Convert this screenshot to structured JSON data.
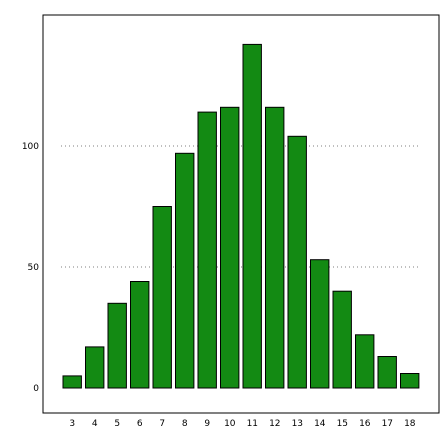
{
  "chart_data": {
    "type": "bar",
    "categories": [
      "3",
      "4",
      "5",
      "6",
      "7",
      "8",
      "9",
      "10",
      "11",
      "12",
      "13",
      "14",
      "15",
      "16",
      "17",
      "18"
    ],
    "values": [
      5,
      17,
      35,
      44,
      75,
      97,
      114,
      116,
      142,
      116,
      104,
      53,
      40,
      22,
      13,
      6
    ],
    "title": "",
    "xlabel": "",
    "ylabel": "",
    "ylim": [
      -10,
      150
    ],
    "yticks": [
      0,
      50,
      100
    ],
    "grid": "horizontal-dotted",
    "legend": "none",
    "bar_color": "#138a13",
    "bar_edge_color": "#000000"
  }
}
